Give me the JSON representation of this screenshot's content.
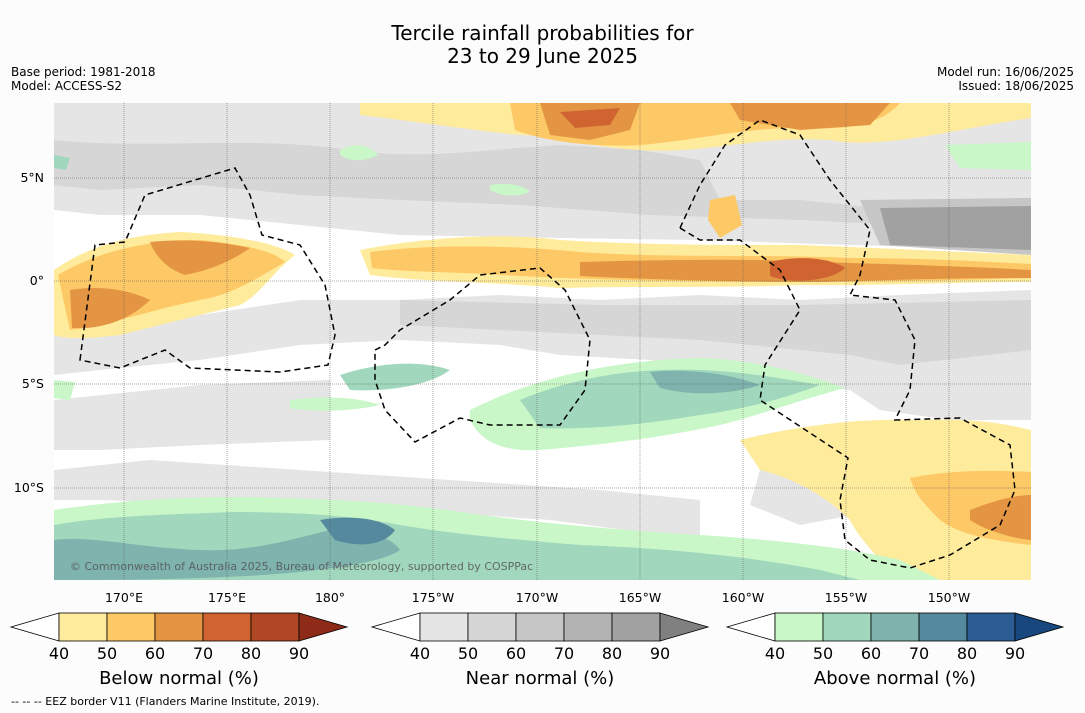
{
  "header": {
    "title_line1": "Tercile rainfall probabilities for",
    "title_line2": "23 to 29 June 2025",
    "base_period": "Base period: 1981-2018",
    "model": "Model: ACCESS-S2",
    "model_run": "Model run: 16/06/2025",
    "issued": "Issued: 18/06/2025"
  },
  "map": {
    "lat_labels": [
      "5°N",
      "0°",
      "5°S",
      "10°S"
    ],
    "lon_labels": [
      "170°E",
      "175°E",
      "180°",
      "175°W",
      "170°W",
      "165°W",
      "160°W",
      "155°W",
      "150°W"
    ],
    "credit": "© Commonwealth of Australia 2025, Bureau of Meteorology, supported by COSPPac"
  },
  "colorbars": [
    {
      "label": "Below normal (%)",
      "ticks": [
        "40",
        "50",
        "60",
        "70",
        "80",
        "90"
      ],
      "colors": [
        "#ffffff",
        "#ffeb9c",
        "#fdc966",
        "#e39543",
        "#cf6431",
        "#b04724",
        "#8e2a18"
      ]
    },
    {
      "label": "Near normal (%)",
      "ticks": [
        "40",
        "50",
        "60",
        "70",
        "80",
        "90"
      ],
      "colors": [
        "#ffffff",
        "#e5e5e5",
        "#d6d6d6",
        "#c6c6c6",
        "#b3b3b3",
        "#a1a1a1",
        "#808080"
      ]
    },
    {
      "label": "Above normal (%)",
      "ticks": [
        "40",
        "50",
        "60",
        "70",
        "80",
        "90"
      ],
      "colors": [
        "#ffffff",
        "#c9f7c8",
        "#a1d8bd",
        "#7fb3ae",
        "#55899d",
        "#2b5c94",
        "#17477e"
      ]
    }
  ],
  "footnote": "--  --  -- EEZ border V11 (Flanders Marine Institute, 2019).",
  "colors": {
    "below": [
      "#ffeb9c",
      "#fdc966",
      "#e39543",
      "#cf6431",
      "#b04724"
    ],
    "near": [
      "#e5e5e5",
      "#d6d6d6",
      "#c6c6c6",
      "#b3b3b3",
      "#a1a1a1"
    ],
    "above": [
      "#c9f7c8",
      "#a1d8bd",
      "#7fb3ae",
      "#55899d"
    ]
  }
}
